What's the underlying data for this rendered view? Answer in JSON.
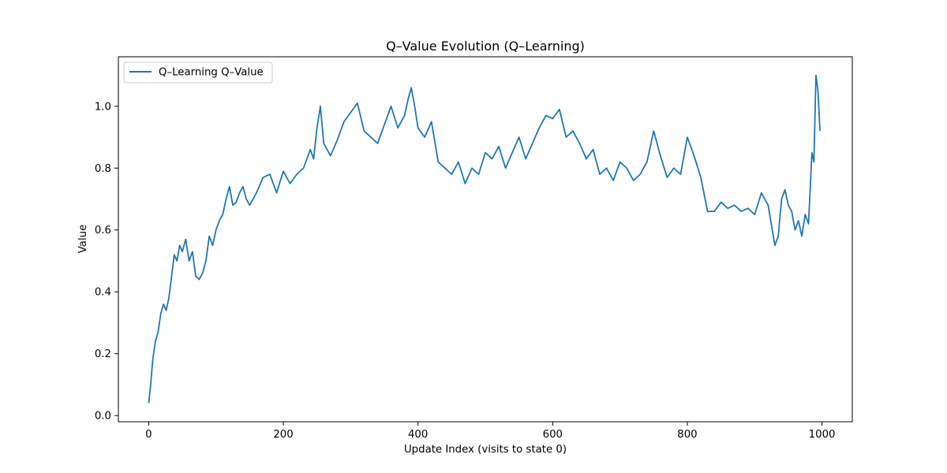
{
  "chart_data": {
    "type": "line",
    "title": "Q–Value Evolution (Q–Learning)",
    "xlabel": "Update Index (visits to state 0)",
    "ylabel": "Value",
    "xlim": [
      -45,
      1045
    ],
    "ylim": [
      -0.02,
      1.16
    ],
    "xticks": [
      0,
      200,
      400,
      600,
      800,
      1000
    ],
    "xtick_labels": [
      "0",
      "200",
      "400",
      "600",
      "800",
      "1000"
    ],
    "yticks": [
      0.0,
      0.2,
      0.4,
      0.6,
      0.8,
      1.0
    ],
    "ytick_labels": [
      "0.0",
      "0.2",
      "0.4",
      "0.6",
      "0.8",
      "1.0"
    ],
    "grid": false,
    "legend_position": "top-left",
    "series": [
      {
        "name": "Q–Learning Q–Value",
        "color": "#1f77b4",
        "x": [
          0,
          3,
          6,
          10,
          14,
          18,
          22,
          26,
          30,
          34,
          38,
          42,
          46,
          50,
          55,
          60,
          65,
          70,
          75,
          80,
          85,
          90,
          95,
          100,
          105,
          110,
          115,
          120,
          125,
          130,
          135,
          140,
          145,
          150,
          160,
          170,
          180,
          190,
          200,
          210,
          220,
          230,
          240,
          245,
          250,
          255,
          260,
          270,
          280,
          290,
          300,
          310,
          320,
          330,
          340,
          350,
          360,
          370,
          380,
          385,
          390,
          395,
          400,
          410,
          420,
          430,
          440,
          450,
          460,
          470,
          480,
          490,
          500,
          510,
          520,
          530,
          540,
          550,
          560,
          570,
          580,
          590,
          600,
          610,
          620,
          630,
          640,
          650,
          660,
          670,
          680,
          690,
          700,
          710,
          720,
          730,
          740,
          750,
          760,
          770,
          780,
          790,
          800,
          810,
          820,
          830,
          840,
          850,
          860,
          870,
          880,
          890,
          900,
          910,
          920,
          930,
          935,
          940,
          945,
          950,
          955,
          960,
          965,
          970,
          975,
          980,
          985,
          988,
          991,
          994,
          997
        ],
        "values": [
          0.04,
          0.1,
          0.18,
          0.24,
          0.27,
          0.33,
          0.36,
          0.34,
          0.38,
          0.45,
          0.52,
          0.5,
          0.55,
          0.53,
          0.57,
          0.5,
          0.53,
          0.45,
          0.44,
          0.46,
          0.5,
          0.58,
          0.55,
          0.6,
          0.63,
          0.65,
          0.7,
          0.74,
          0.68,
          0.69,
          0.72,
          0.74,
          0.7,
          0.68,
          0.72,
          0.77,
          0.78,
          0.72,
          0.79,
          0.75,
          0.78,
          0.8,
          0.86,
          0.83,
          0.93,
          1.0,
          0.88,
          0.84,
          0.89,
          0.95,
          0.98,
          1.01,
          0.92,
          0.9,
          0.88,
          0.94,
          1.0,
          0.93,
          0.97,
          1.02,
          1.06,
          1.0,
          0.93,
          0.9,
          0.95,
          0.82,
          0.8,
          0.78,
          0.82,
          0.75,
          0.8,
          0.78,
          0.85,
          0.83,
          0.87,
          0.8,
          0.85,
          0.9,
          0.83,
          0.88,
          0.93,
          0.97,
          0.96,
          0.99,
          0.9,
          0.92,
          0.88,
          0.83,
          0.86,
          0.78,
          0.8,
          0.76,
          0.82,
          0.8,
          0.76,
          0.78,
          0.82,
          0.92,
          0.84,
          0.77,
          0.8,
          0.78,
          0.9,
          0.84,
          0.77,
          0.66,
          0.66,
          0.69,
          0.67,
          0.68,
          0.66,
          0.67,
          0.65,
          0.72,
          0.68,
          0.55,
          0.58,
          0.7,
          0.73,
          0.68,
          0.66,
          0.6,
          0.63,
          0.58,
          0.65,
          0.62,
          0.85,
          0.82,
          1.1,
          1.05,
          0.92
        ]
      }
    ]
  }
}
